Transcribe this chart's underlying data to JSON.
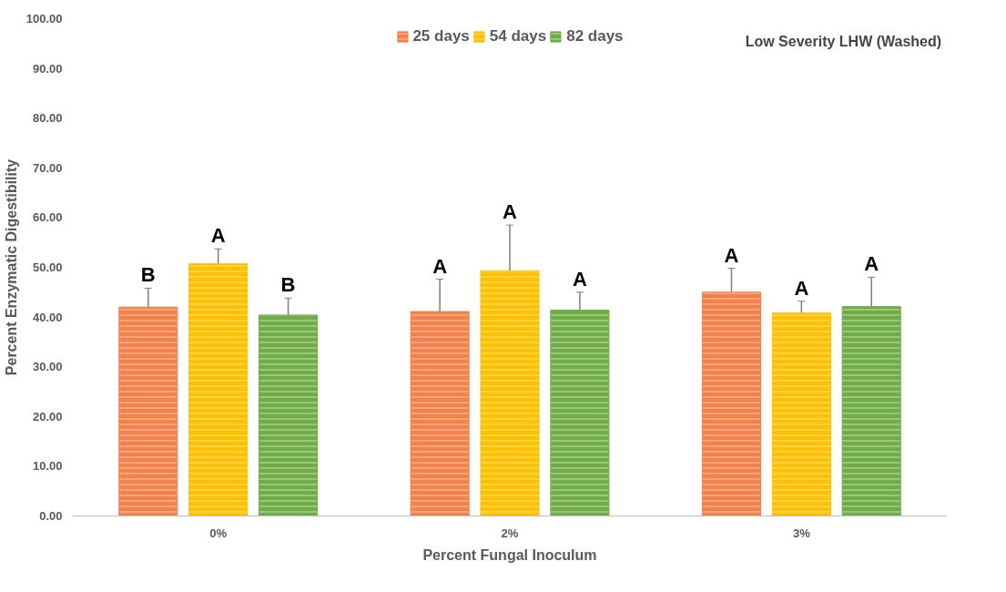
{
  "chart_data": {
    "type": "bar",
    "title": "Low Severity LHW (Washed)",
    "xlabel": "Percent Fungal Inoculum",
    "ylabel": "Percent Enzymatic Digestibility",
    "categories": [
      "0%",
      "2%",
      "3%"
    ],
    "series": [
      {
        "name": "25 days",
        "color": "#f4804a",
        "values": [
          42.0,
          41.1,
          45.0
        ],
        "errors": [
          3.8,
          6.5,
          4.8
        ]
      },
      {
        "name": "54 days",
        "color": "#ffc000",
        "values": [
          50.7,
          49.3,
          40.8
        ],
        "errors": [
          3.0,
          9.2,
          2.4
        ]
      },
      {
        "name": "82 days",
        "color": "#70ad47",
        "values": [
          40.4,
          41.4,
          42.1
        ],
        "errors": [
          3.4,
          3.6,
          5.9
        ]
      }
    ],
    "ylim": [
      0,
      100
    ],
    "yticks": [
      {
        "value": 0,
        "label": "0.00"
      },
      {
        "value": 10,
        "label": "10.00"
      },
      {
        "value": 20,
        "label": "20.00"
      },
      {
        "value": 30,
        "label": "30.00"
      },
      {
        "value": 40,
        "label": "40.00"
      },
      {
        "value": 50,
        "label": "50.00"
      },
      {
        "value": 60,
        "label": "60.00"
      },
      {
        "value": 70,
        "label": "70.00"
      },
      {
        "value": 80,
        "label": "80.00"
      },
      {
        "value": 90,
        "label": "90.00"
      },
      {
        "value": 100,
        "label": "100.00"
      }
    ],
    "annotations": [
      "B",
      "A",
      "B",
      "A",
      "A",
      "A",
      "A",
      "A",
      "A"
    ],
    "grid": false,
    "legend": "top"
  }
}
